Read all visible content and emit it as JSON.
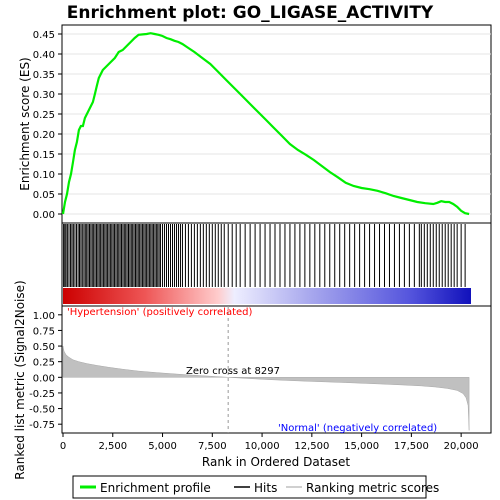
{
  "chart_data": {
    "type": "line",
    "title": "Enrichment plot: GO_LIGASE_ACTIVITY",
    "es_panel": {
      "ylabel": "Enrichment score (ES)",
      "ylim": [
        -0.02,
        0.47
      ],
      "yticks": [
        0.0,
        0.05,
        0.1,
        0.15,
        0.2,
        0.25,
        0.3,
        0.35,
        0.4,
        0.45
      ],
      "ytick_labels": [
        "0.00",
        "0.05",
        "0.10",
        "0.15",
        "0.20",
        "0.25",
        "0.30",
        "0.35",
        "0.40",
        "0.45"
      ],
      "grid": true,
      "series": [
        {
          "name": "Enrichment profile",
          "color": "#00ee00",
          "x": [
            0,
            100,
            200,
            300,
            400,
            500,
            600,
            700,
            800,
            900,
            1000,
            1100,
            1200,
            1300,
            1400,
            1500,
            1600,
            1700,
            1800,
            1900,
            2000,
            2200,
            2400,
            2600,
            2800,
            3000,
            3200,
            3400,
            3600,
            3800,
            4000,
            4200,
            4400,
            4600,
            4800,
            5000,
            5200,
            5400,
            5600,
            5800,
            6000,
            6300,
            6600,
            7000,
            7400,
            7800,
            8200,
            8600,
            9000,
            9400,
            9800,
            10200,
            10600,
            11000,
            11400,
            11800,
            12200,
            12600,
            13000,
            13400,
            13800,
            14200,
            14600,
            15000,
            15400,
            15800,
            16200,
            16600,
            17000,
            17400,
            17800,
            18200,
            18600,
            18800,
            19000,
            19200,
            19400,
            19600,
            19800,
            20000,
            20200,
            20400
          ],
          "values": [
            0.0,
            0.03,
            0.05,
            0.08,
            0.1,
            0.13,
            0.16,
            0.18,
            0.21,
            0.22,
            0.22,
            0.24,
            0.25,
            0.26,
            0.27,
            0.28,
            0.3,
            0.32,
            0.34,
            0.35,
            0.36,
            0.37,
            0.38,
            0.39,
            0.405,
            0.41,
            0.42,
            0.43,
            0.44,
            0.448,
            0.449,
            0.45,
            0.452,
            0.45,
            0.448,
            0.445,
            0.44,
            0.437,
            0.433,
            0.43,
            0.425,
            0.415,
            0.405,
            0.39,
            0.375,
            0.355,
            0.335,
            0.315,
            0.295,
            0.275,
            0.255,
            0.235,
            0.215,
            0.195,
            0.175,
            0.16,
            0.148,
            0.135,
            0.12,
            0.105,
            0.092,
            0.078,
            0.07,
            0.065,
            0.062,
            0.058,
            0.052,
            0.045,
            0.04,
            0.035,
            0.03,
            0.027,
            0.025,
            0.028,
            0.032,
            0.03,
            0.03,
            0.025,
            0.018,
            0.008,
            0.002,
            0.0
          ]
        }
      ]
    },
    "hits_panel": {
      "name": "Hits",
      "hit_ranks": [
        30,
        90,
        150,
        220,
        300,
        380,
        450,
        520,
        600,
        680,
        760,
        830,
        900,
        970,
        1050,
        1120,
        1190,
        1260,
        1330,
        1400,
        1470,
        1540,
        1610,
        1680,
        1750,
        1820,
        1890,
        1960,
        2030,
        2100,
        2170,
        2240,
        2310,
        2380,
        2450,
        2520,
        2590,
        2660,
        2730,
        2800,
        2870,
        2940,
        3010,
        3080,
        3150,
        3220,
        3290,
        3360,
        3430,
        3500,
        3570,
        3640,
        3710,
        3780,
        3850,
        3920,
        3990,
        4060,
        4130,
        4200,
        4270,
        4340,
        4410,
        4480,
        4550,
        4620,
        4690,
        4760,
        4830,
        4900,
        5000,
        5100,
        5200,
        5300,
        5400,
        5500,
        5600,
        5700,
        5800,
        5900,
        6000,
        6150,
        6300,
        6450,
        6600,
        6750,
        6900,
        7050,
        7200,
        7350,
        7500,
        7650,
        7800,
        7950,
        8100,
        8300,
        8500,
        8700,
        8900,
        9150,
        9400,
        9650,
        9900,
        10150,
        10400,
        10650,
        10900,
        11150,
        11400,
        11650,
        11900,
        12150,
        12400,
        12650,
        12900,
        13150,
        13400,
        13650,
        13900,
        14150,
        14400,
        14650,
        14900,
        15150,
        15400,
        15650,
        15900,
        16150,
        16400,
        16650,
        16900,
        17150,
        17400,
        17650,
        17900,
        18000,
        18150,
        18300,
        18450,
        18600,
        18750,
        18900,
        19050,
        19200,
        19350,
        19500,
        19650,
        19800,
        20000,
        20200
      ]
    },
    "ranked_panel": {
      "ylabel": "Ranked list metric (Signal2Noise)",
      "xlabel": "Rank in Ordered Dataset",
      "ylim": [
        -0.875,
        1.125
      ],
      "yticks": [
        -0.75,
        -0.5,
        -0.25,
        0.0,
        0.25,
        0.5,
        0.75,
        1.0
      ],
      "ytick_labels": [
        "-0.75",
        "-0.50",
        "-0.25",
        "0.00",
        "0.25",
        "0.50",
        "0.75",
        "1.00"
      ],
      "xlim": [
        0,
        21500
      ],
      "xticks": [
        0,
        2500,
        5000,
        7500,
        10000,
        12500,
        15000,
        17500,
        20000
      ],
      "xtick_labels": [
        "0",
        "2,500",
        "5,000",
        "7,500",
        "10,000",
        "12,500",
        "15,000",
        "17,500",
        "20,000"
      ],
      "zero_cross": 8297,
      "zero_cross_label": "Zero cross at 8297",
      "positive_label": "'Hypertension' (positively correlated)",
      "negative_label": "'Normal' (negatively correlated)",
      "positive_label_color": "#ff0000",
      "negative_label_color": "#0000ff",
      "series": [
        {
          "name": "Ranking metric scores",
          "color": "#c0c0c0",
          "x": [
            0,
            50,
            150,
            300,
            500,
            800,
            1200,
            1700,
            2300,
            3000,
            3800,
            4700,
            5600,
            6500,
            7400,
            8297,
            9200,
            10200,
            11200,
            12200,
            13200,
            14200,
            15200,
            16200,
            17200,
            18000,
            18700,
            19300,
            19800,
            20100,
            20250,
            20350,
            20400
          ],
          "values": [
            0.5,
            0.42,
            0.36,
            0.32,
            0.28,
            0.25,
            0.22,
            0.19,
            0.16,
            0.13,
            0.1,
            0.075,
            0.055,
            0.035,
            0.018,
            0.0,
            -0.018,
            -0.035,
            -0.05,
            -0.062,
            -0.074,
            -0.085,
            -0.097,
            -0.11,
            -0.124,
            -0.138,
            -0.155,
            -0.178,
            -0.21,
            -0.26,
            -0.33,
            -0.45,
            -0.85
          ]
        }
      ]
    },
    "legend": {
      "items": [
        {
          "label": "Enrichment profile",
          "color": "#00ee00"
        },
        {
          "label": "Hits",
          "color": "#000000"
        },
        {
          "label": "Ranking metric scores",
          "color": "#c0c0c0"
        }
      ]
    }
  }
}
